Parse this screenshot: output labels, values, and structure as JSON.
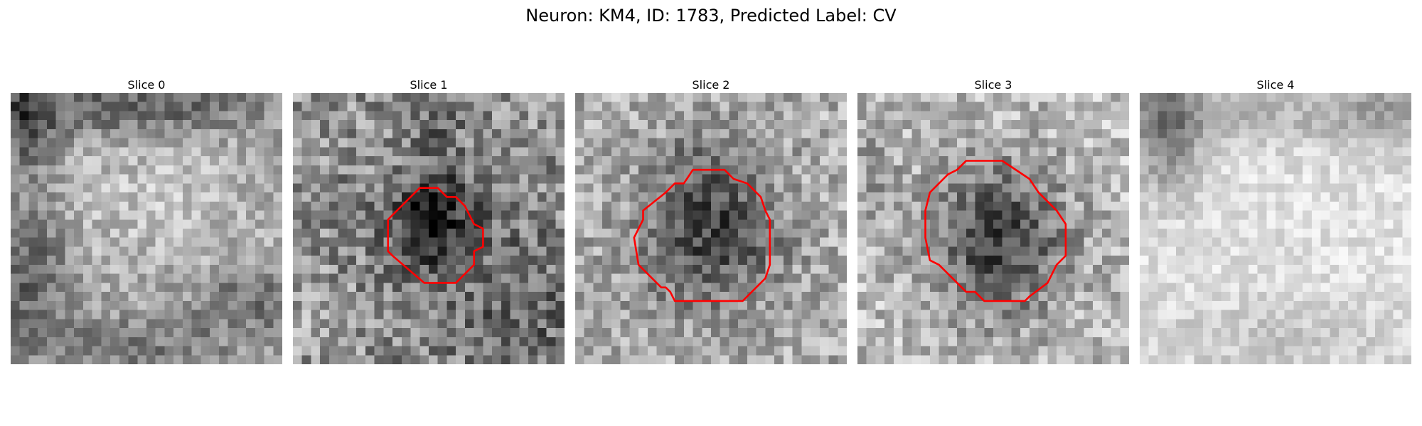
{
  "figure": {
    "title": "Neuron: KM4, ID: 1783, Predicted Label: CV",
    "colors": {
      "contour": "#ff0000",
      "background": "#ffffff",
      "colormap": "gray"
    },
    "slices": [
      {
        "title": "Slice 0",
        "has_contour": false,
        "appearance": "mid-grey texture with dark regions along top, left and bottom-right"
      },
      {
        "title": "Slice 1",
        "has_contour": true,
        "appearance": "small dark blob outlined by red polygon"
      },
      {
        "title": "Slice 2",
        "has_contour": true,
        "appearance": "dark rounded cell body outlined by larger red polygon"
      },
      {
        "title": "Slice 3",
        "has_contour": true,
        "appearance": "dark rounded cell body outlined by red polygon"
      },
      {
        "title": "Slice 4",
        "has_contour": false,
        "appearance": "bright texture with dark top-left corner"
      }
    ]
  }
}
